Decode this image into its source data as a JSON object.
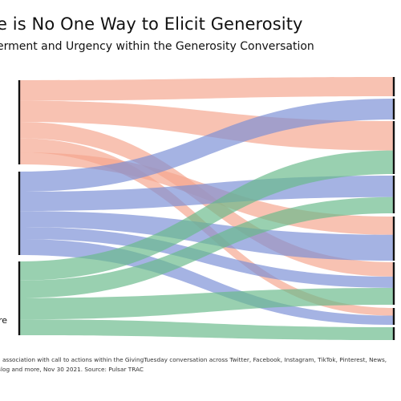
{
  "title": "e is No One Way to Elicit Generosity",
  "subtitle": "erment and Urgency within the Generosity Conversation",
  "left_label_fragment": "re",
  "source_line1": "n association with call to actions within the GivingTuesday conversation across Twitter, Facebook, Instagram, TikTok, Pinterest, News,",
  "source_line2": "Blog and more, Nov 30 2021. Source: Pulsar TRAC",
  "colors": {
    "salmon": "#f4a58e",
    "blue": "#7b8fd6",
    "green": "#69b98a",
    "node": "#111111"
  },
  "chart_data": {
    "type": "sankey",
    "left_nodes": [
      "",
      "",
      "re"
    ],
    "right_nodes": [
      "",
      "",
      "",
      "",
      "",
      "",
      "",
      ""
    ],
    "flows": [
      {
        "source": 0,
        "target": 0,
        "color": "salmon",
        "value": 29
      },
      {
        "source": 0,
        "target": 2,
        "color": "salmon",
        "value": 30
      },
      {
        "source": 0,
        "target": 5,
        "color": "salmon",
        "value": 23
      },
      {
        "source": 0,
        "target": 6,
        "color": "salmon",
        "value": 20
      },
      {
        "source": 0,
        "target": 4,
        "color": "salmon",
        "value": 17
      },
      {
        "source": 1,
        "target": 1,
        "color": "blue",
        "value": 30
      },
      {
        "source": 1,
        "target": 3,
        "color": "blue",
        "value": 29
      },
      {
        "source": 1,
        "target": 4,
        "color": "blue",
        "value": 24
      },
      {
        "source": 1,
        "target": 5,
        "color": "blue",
        "value": 18
      },
      {
        "source": 1,
        "target": 6,
        "color": "blue",
        "value": 24
      },
      {
        "source": 2,
        "target": 2,
        "color": "green",
        "value": 24
      },
      {
        "source": 2,
        "target": 3,
        "color": "green",
        "value": 22
      },
      {
        "source": 2,
        "target": 5,
        "color": "green",
        "value": 27
      },
      {
        "source": 2,
        "target": 7,
        "color": "green",
        "value": 20
      }
    ]
  }
}
